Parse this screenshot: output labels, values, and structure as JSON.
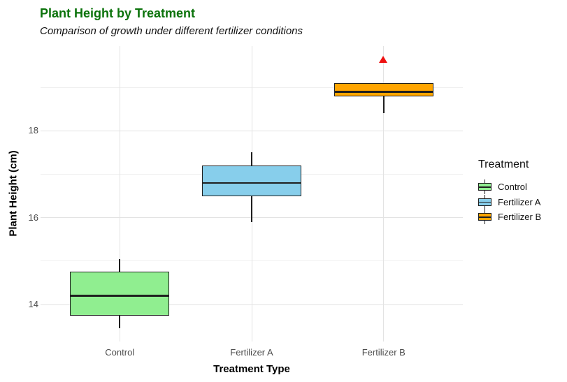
{
  "chart_data": {
    "type": "boxplot",
    "title": "Plant Height by Treatment",
    "subtitle": "Comparison of growth under different fertilizer conditions",
    "xlabel": "Treatment Type",
    "ylabel": "Plant Height (cm)",
    "categories": [
      "Control",
      "Fertilizer A",
      "Fertilizer B"
    ],
    "series": [
      {
        "name": "Control",
        "fill": "#90EE90",
        "whisker_low": 13.45,
        "q1": 13.75,
        "median": 14.2,
        "q3": 14.75,
        "whisker_high": 15.05,
        "outliers": []
      },
      {
        "name": "Fertilizer A",
        "fill": "#87CEEB",
        "whisker_low": 15.9,
        "q1": 16.5,
        "median": 16.8,
        "q3": 17.2,
        "whisker_high": 17.5,
        "outliers": []
      },
      {
        "name": "Fertilizer B",
        "fill": "#FFA500",
        "whisker_low": 18.4,
        "q1": 18.8,
        "median": 18.9,
        "q3": 19.1,
        "whisker_high": 19.1,
        "outliers": [
          19.65
        ]
      }
    ],
    "yticks": [
      14,
      16,
      18
    ],
    "minor_yticks": [
      15,
      17,
      19
    ],
    "ylim": [
      13.15,
      19.95
    ],
    "grid": true,
    "legend": {
      "title": "Treatment",
      "position": "right"
    },
    "outlier_marker": "triangle-up"
  },
  "colors": {
    "title_green": "#0a720a",
    "outlier_red": "#ee1111",
    "axis_text_gray": "#4d4d4d"
  }
}
